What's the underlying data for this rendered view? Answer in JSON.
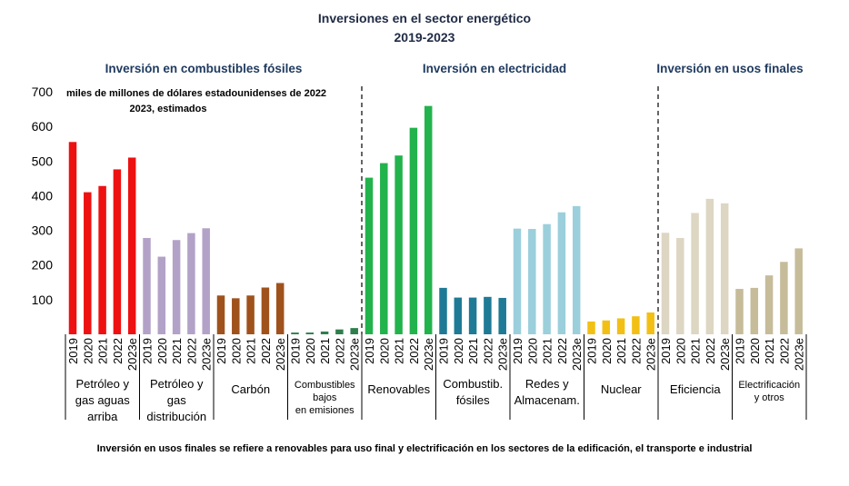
{
  "title": "Inversiones en el sector energético",
  "subtitle": "2019-2023",
  "unit_label_line1": "miles de millones de dólares estadounidenses de 2022",
  "unit_label_line2": "2023, estimados",
  "sections": [
    {
      "label": "Inversión en combustibles fósiles"
    },
    {
      "label": "Inversión en electricidad"
    },
    {
      "label": "Inversión en usos finales"
    }
  ],
  "footnote": "Inversión en usos finales se refiere a renovables para uso final y electrificación en los sectores de la edificación, el transporte e industrial",
  "chart_data": {
    "type": "bar",
    "ylim": [
      0,
      700
    ],
    "yticks": [
      "100",
      "200",
      "300",
      "400",
      "500",
      "600",
      "700"
    ],
    "x": [
      "2019",
      "2020",
      "2021",
      "2022",
      "2023e"
    ],
    "groups": [
      {
        "label_lines": [
          "Petróleo y",
          "gas aguas",
          "arriba"
        ],
        "color": "#ee1111",
        "values": [
          555,
          410,
          428,
          476,
          510
        ]
      },
      {
        "label_lines": [
          "Petróleo y",
          "gas",
          "distribución"
        ],
        "color": "#b3a2c7",
        "values": [
          278,
          224,
          272,
          292,
          306
        ]
      },
      {
        "label_lines": [
          "Carbón"
        ],
        "color": "#a0521c",
        "values": [
          112,
          104,
          112,
          135,
          148
        ]
      },
      {
        "label_lines": [
          "Combustibles",
          "bajos",
          "en emisiones"
        ],
        "color": "#2e7f4d",
        "small": true,
        "values": [
          5,
          5,
          8,
          14,
          18
        ]
      },
      {
        "label_lines": [
          "Renovables"
        ],
        "color": "#22b34c",
        "values": [
          452,
          494,
          516,
          596,
          659
        ]
      },
      {
        "label_lines": [
          "Combustib.",
          "fósiles"
        ],
        "color": "#1f7a96",
        "values": [
          134,
          106,
          106,
          108,
          105
        ]
      },
      {
        "label_lines": [
          "Redes y",
          "Almacenam."
        ],
        "color": "#9bcfdc",
        "values": [
          305,
          304,
          318,
          352,
          370
        ]
      },
      {
        "label_lines": [
          "Nuclear"
        ],
        "color": "#f2c014",
        "values": [
          37,
          40,
          46,
          52,
          63
        ]
      },
      {
        "label_lines": [
          "Eficiencia"
        ],
        "color": "#ddd6c3",
        "values": [
          293,
          278,
          350,
          391,
          378
        ]
      },
      {
        "label_lines": [
          "Electrificación",
          "y otros"
        ],
        "color": "#c6bc9a",
        "small": true,
        "values": [
          131,
          134,
          170,
          209,
          248
        ]
      }
    ]
  }
}
